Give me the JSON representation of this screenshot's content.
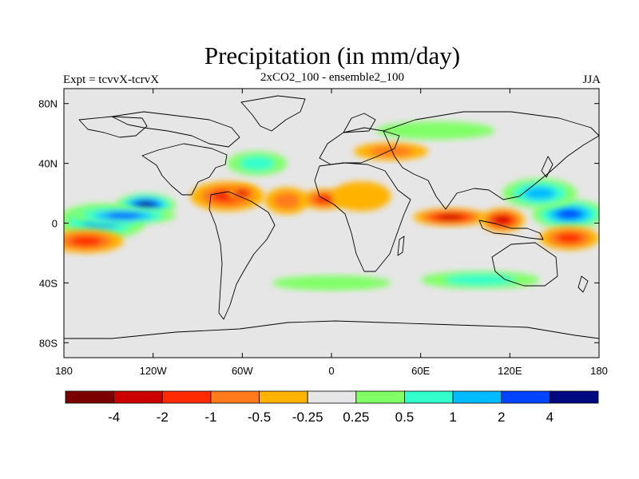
{
  "title": "Precipitation (in mm/day)",
  "subtitle": "2xCO2_100 - ensemble2_100",
  "experiment": "Expt = tcvvX-tcrvX",
  "season": "JJA",
  "lon_ticks": [
    "180",
    "120W",
    "60W",
    "0",
    "60E",
    "120E",
    "180"
  ],
  "lat_ticks": [
    "80N",
    "40N",
    "0",
    "40S",
    "80S"
  ],
  "colorbar": {
    "colors": [
      "#7a0000",
      "#cc0000",
      "#ff2a00",
      "#ff7a1a",
      "#ffb300",
      "#e6e6e6",
      "#80ff66",
      "#33ffcc",
      "#00bbff",
      "#0044ff",
      "#000a80"
    ],
    "labels": [
      "-4",
      "-2",
      "-1",
      "-0.5",
      "-0.25",
      "0.25",
      "0.5",
      "1",
      "2",
      "4"
    ]
  },
  "chart_data": {
    "type": "heatmap",
    "title": "Precipitation (in mm/day)",
    "subtitle": "2xCO2_100 - ensemble2_100",
    "xlim": [
      -180,
      180
    ],
    "ylim": [
      -90,
      90
    ],
    "levels": [
      -4,
      -2,
      -1,
      -0.5,
      -0.25,
      0.25,
      0.5,
      1,
      2,
      4
    ],
    "anomalies": [
      {
        "lon": -125,
        "lat": 12,
        "rx": 20,
        "ry": 8,
        "value": 5
      },
      {
        "lon": -155,
        "lat": 1,
        "rx": 30,
        "ry": 12,
        "value": 1.5
      },
      {
        "lon": -140,
        "lat": 5,
        "rx": 35,
        "ry": 6,
        "value": 2.5
      },
      {
        "lon": -70,
        "lat": 18,
        "rx": 25,
        "ry": 10,
        "value": -1.5
      },
      {
        "lon": -60,
        "lat": 20,
        "rx": 10,
        "ry": 5,
        "value": -3
      },
      {
        "lon": -30,
        "lat": 15,
        "rx": 15,
        "ry": 9,
        "value": -0.7
      },
      {
        "lon": -5,
        "lat": 16,
        "rx": 15,
        "ry": 7,
        "value": -1.5
      },
      {
        "lon": 20,
        "lat": 18,
        "rx": 20,
        "ry": 10,
        "value": -0.4
      },
      {
        "lon": 80,
        "lat": 4,
        "rx": 25,
        "ry": 6,
        "value": -2
      },
      {
        "lon": 115,
        "lat": 2,
        "rx": 15,
        "ry": 8,
        "value": -2.5
      },
      {
        "lon": 160,
        "lat": 6,
        "rx": 25,
        "ry": 10,
        "value": 3
      },
      {
        "lon": 140,
        "lat": 20,
        "rx": 25,
        "ry": 10,
        "value": 1.5
      },
      {
        "lon": -165,
        "lat": -12,
        "rx": 25,
        "ry": 8,
        "value": -1.5
      },
      {
        "lon": 160,
        "lat": -10,
        "rx": 20,
        "ry": 8,
        "value": -1.5
      },
      {
        "lon": 40,
        "lat": 48,
        "rx": 25,
        "ry": 6,
        "value": -0.7
      },
      {
        "lon": -50,
        "lat": 40,
        "rx": 20,
        "ry": 8,
        "value": 0.7
      },
      {
        "lon": 70,
        "lat": 62,
        "rx": 40,
        "ry": 6,
        "value": 0.4
      },
      {
        "lon": 0,
        "lat": -40,
        "rx": 40,
        "ry": 5,
        "value": 0.4
      },
      {
        "lon": 100,
        "lat": -38,
        "rx": 40,
        "ry": 6,
        "value": 0.5
      }
    ]
  }
}
